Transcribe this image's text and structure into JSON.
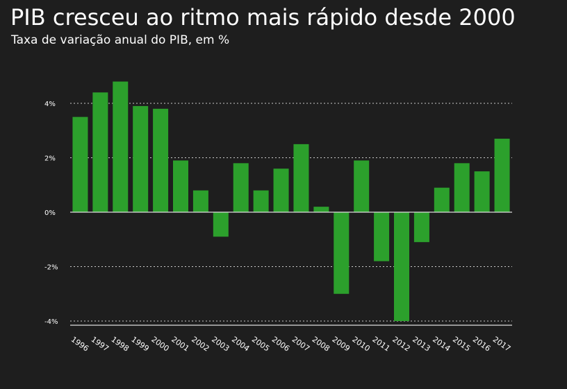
{
  "colors": {
    "background": "#1e1e1e",
    "bar": "#2ca02c",
    "grid": "#cccccc",
    "text": "#ffffff"
  },
  "chart_data": {
    "type": "bar",
    "title": "PIB cresceu ao ritmo mais rápido desde 2000",
    "subtitle": "Taxa de variação anual do PIB, em %",
    "xlabel": "",
    "ylabel": "",
    "categories": [
      "1996",
      "1997",
      "1998",
      "1999",
      "2000",
      "2001",
      "2002",
      "2003",
      "2004",
      "2005",
      "2006",
      "2007",
      "2008",
      "2009",
      "2010",
      "2011",
      "2012",
      "2013",
      "2014",
      "2015",
      "2016",
      "2017"
    ],
    "values": [
      3.5,
      4.4,
      4.8,
      3.9,
      3.8,
      1.9,
      0.8,
      -0.9,
      1.8,
      0.8,
      1.6,
      2.5,
      0.2,
      -3.0,
      1.9,
      -1.8,
      -4.0,
      -1.1,
      0.9,
      1.8,
      1.5,
      2.7
    ],
    "ylim": [
      -4.2,
      5.0
    ],
    "yticks": [
      4,
      2,
      0,
      -2,
      -4
    ],
    "ytick_labels": [
      "4%",
      "2%",
      "0%",
      "-2%",
      "-4%"
    ],
    "grid": true,
    "legend": "none"
  }
}
